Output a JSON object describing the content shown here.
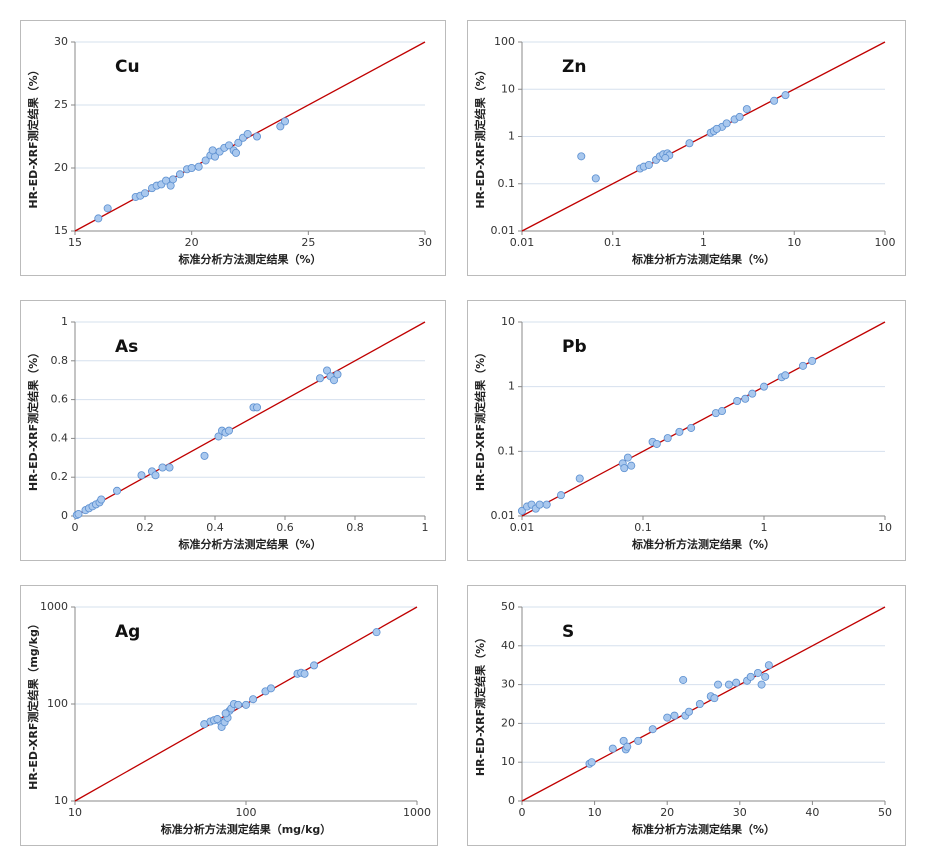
{
  "chart_data": [
    {
      "type": "scatter",
      "title": "Cu",
      "x_label": "标准分析方法测定结果（%）",
      "y_label": "HR-ED-XRF测定结果（%）",
      "xlim": [
        15,
        30
      ],
      "ylim": [
        15,
        30
      ],
      "xticks": [
        15,
        20,
        25,
        30
      ],
      "yticks": [
        15,
        20,
        25,
        30
      ],
      "log_scale": false,
      "grid": true,
      "color": "#a9c8ee",
      "edge_color": "#5b8fd0",
      "line_color": "#c00000",
      "x": [
        16,
        16.4,
        17.6,
        17.8,
        18,
        18.3,
        18.5,
        18.7,
        18.9,
        19.1,
        19.2,
        19.5,
        19.8,
        20,
        20.3,
        20.6,
        20.8,
        21,
        21.2,
        21.4,
        21.6,
        21.8,
        22,
        22.2,
        22.4,
        22.8,
        23.8,
        24,
        21.9,
        20.9
      ],
      "values": [
        16,
        16.8,
        17.7,
        17.8,
        18,
        18.4,
        18.6,
        18.7,
        19,
        18.6,
        19.1,
        19.5,
        19.9,
        20,
        20.1,
        20.6,
        21,
        20.9,
        21.3,
        21.6,
        21.8,
        21.4,
        22,
        22.4,
        22.7,
        22.5,
        23.3,
        23.7,
        21.2,
        21.4
      ]
    },
    {
      "type": "scatter",
      "title": "Zn",
      "x_label": "标准分析方法测定结果（%）",
      "y_label": "HR-ED-XRF测定结果（%）",
      "xlim": [
        0.01,
        100
      ],
      "ylim": [
        0.01,
        100
      ],
      "xticks": [
        0.01,
        0.1,
        1,
        10,
        100
      ],
      "yticks": [
        0.01,
        0.1,
        1,
        10,
        100
      ],
      "log_scale": true,
      "grid": true,
      "color": "#a9c8ee",
      "edge_color": "#5b8fd0",
      "line_color": "#c00000",
      "x": [
        0.045,
        0.065,
        0.2,
        0.22,
        0.25,
        0.3,
        0.33,
        0.36,
        0.4,
        0.42,
        0.7,
        1.2,
        1.3,
        1.6,
        1.8,
        2.2,
        2.5,
        3,
        6,
        8,
        1.4,
        0.38
      ],
      "values": [
        0.38,
        0.13,
        0.21,
        0.23,
        0.25,
        0.32,
        0.38,
        0.42,
        0.44,
        0.4,
        0.72,
        1.2,
        1.3,
        1.6,
        1.9,
        2.3,
        2.6,
        3.8,
        5.7,
        7.5,
        1.45,
        0.35
      ]
    },
    {
      "type": "scatter",
      "title": "As",
      "x_label": "标准分析方法测定结果（%）",
      "y_label": "HR-ED-XRF测定结果（%）",
      "xlim": [
        0,
        1
      ],
      "ylim": [
        0,
        1
      ],
      "xticks": [
        0,
        0.2,
        0.4,
        0.6,
        0.8,
        1
      ],
      "yticks": [
        0,
        0.2,
        0.4,
        0.6,
        0.8,
        1
      ],
      "log_scale": false,
      "grid": true,
      "color": "#a9c8ee",
      "edge_color": "#5b8fd0",
      "line_color": "#c00000",
      "x": [
        0.005,
        0.01,
        0.03,
        0.04,
        0.05,
        0.06,
        0.07,
        0.075,
        0.12,
        0.19,
        0.22,
        0.23,
        0.25,
        0.27,
        0.37,
        0.41,
        0.42,
        0.43,
        0.44,
        0.51,
        0.52,
        0.7,
        0.72,
        0.73,
        0.74,
        0.75
      ],
      "values": [
        0.005,
        0.01,
        0.03,
        0.04,
        0.05,
        0.06,
        0.07,
        0.085,
        0.13,
        0.21,
        0.23,
        0.21,
        0.25,
        0.25,
        0.31,
        0.41,
        0.44,
        0.43,
        0.44,
        0.56,
        0.56,
        0.71,
        0.75,
        0.72,
        0.7,
        0.73
      ]
    },
    {
      "type": "scatter",
      "title": "Pb",
      "x_label": "标准分析方法测定结果（%）",
      "y_label": "HR-ED-XRF测定结果（%）",
      "xlim": [
        0.01,
        10
      ],
      "ylim": [
        0.01,
        10
      ],
      "xticks": [
        0.01,
        0.1,
        1,
        10
      ],
      "yticks": [
        0.01,
        0.1,
        1,
        10
      ],
      "log_scale": true,
      "grid": true,
      "color": "#a9c8ee",
      "edge_color": "#5b8fd0",
      "line_color": "#c00000",
      "x": [
        0.01,
        0.011,
        0.012,
        0.013,
        0.014,
        0.016,
        0.021,
        0.03,
        0.068,
        0.07,
        0.075,
        0.08,
        0.12,
        0.13,
        0.16,
        0.2,
        0.25,
        0.4,
        0.45,
        0.6,
        0.7,
        0.8,
        1,
        1.4,
        1.5,
        2.1,
        2.5
      ],
      "values": [
        0.012,
        0.014,
        0.015,
        0.013,
        0.015,
        0.015,
        0.021,
        0.038,
        0.065,
        0.055,
        0.08,
        0.06,
        0.14,
        0.13,
        0.16,
        0.2,
        0.23,
        0.39,
        0.42,
        0.6,
        0.65,
        0.78,
        1,
        1.4,
        1.5,
        2.1,
        2.5
      ]
    },
    {
      "type": "scatter",
      "title": "Ag",
      "x_label": "标准分析方法测定结果（mg/kg）",
      "y_label": "HR-ED-XRF测定结果（mg/kg）",
      "xlim": [
        10,
        1000
      ],
      "ylim": [
        10,
        1000
      ],
      "xticks": [
        10,
        100,
        1000
      ],
      "yticks": [
        10,
        100,
        1000
      ],
      "log_scale": true,
      "grid": true,
      "color": "#a9c8ee",
      "edge_color": "#5b8fd0",
      "line_color": "#c00000",
      "x": [
        57,
        62,
        65,
        70,
        72,
        75,
        78,
        80,
        82,
        85,
        90,
        100,
        110,
        130,
        140,
        200,
        210,
        220,
        250,
        580,
        76,
        68
      ],
      "values": [
        62,
        66,
        68,
        67,
        58,
        65,
        72,
        85,
        90,
        100,
        98,
        98,
        112,
        135,
        145,
        205,
        210,
        205,
        250,
        550,
        80,
        70
      ]
    },
    {
      "type": "scatter",
      "title": "S",
      "x_label": "标准分析方法测定结果（%）",
      "y_label": "HR-ED-XRF测定结果（%）",
      "xlim": [
        0,
        50
      ],
      "ylim": [
        0,
        50
      ],
      "xticks": [
        0,
        10,
        20,
        30,
        40,
        50
      ],
      "yticks": [
        0,
        10,
        20,
        30,
        40,
        50
      ],
      "log_scale": false,
      "grid": true,
      "color": "#a9c8ee",
      "edge_color": "#5b8fd0",
      "line_color": "#c00000",
      "x": [
        9.3,
        9.6,
        12.5,
        14,
        14.3,
        14.5,
        16,
        18,
        20,
        21,
        22.2,
        22.5,
        23,
        24.5,
        26,
        26.5,
        27,
        28.5,
        29.5,
        31,
        31.5,
        32.5,
        33,
        33.5,
        34
      ],
      "values": [
        9.6,
        10,
        13.5,
        15.5,
        13.3,
        14,
        15.5,
        18.5,
        21.5,
        22,
        31.2,
        22,
        23,
        25,
        27,
        26.5,
        30,
        30,
        30.5,
        31,
        32,
        33,
        30,
        32,
        35
      ]
    }
  ]
}
